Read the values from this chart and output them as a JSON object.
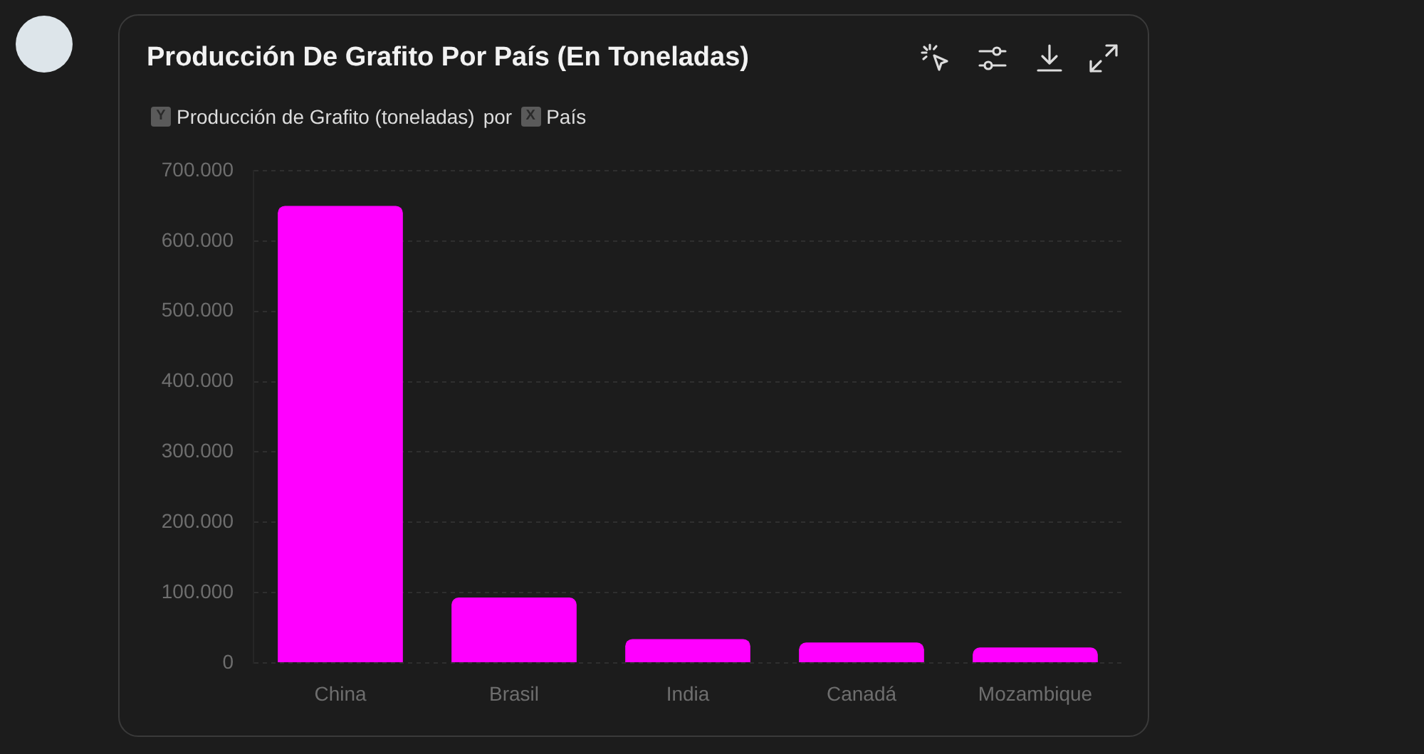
{
  "chart_data": {
    "type": "bar",
    "title": "Producción De Grafito Por País (En Toneladas)",
    "subtitle": "por",
    "ylabel": "Producción de Grafito (toneladas)",
    "xlabel": "País",
    "annotations": [
      "Y",
      "X"
    ],
    "categories": [
      "China",
      "Brasil",
      "India",
      "Canadá",
      "Mozambique"
    ],
    "values": [
      650000,
      93000,
      34000,
      29000,
      22000
    ],
    "color": "#ff00ff",
    "ylim": [
      0,
      700000
    ],
    "yticks": [
      0,
      {
        "value": 100000,
        "label": "100.000"
      },
      {
        "value": 200000,
        "label": "200.000"
      },
      {
        "value": 300000,
        "label": "300.000"
      },
      {
        "value": 400000,
        "label": "400.000"
      },
      {
        "value": 500000,
        "label": "500.000"
      },
      {
        "value": 600000,
        "label": "600.000"
      },
      {
        "value": 700000,
        "label": "700.000"
      }
    ],
    "grid": "y",
    "legend": false
  }
}
